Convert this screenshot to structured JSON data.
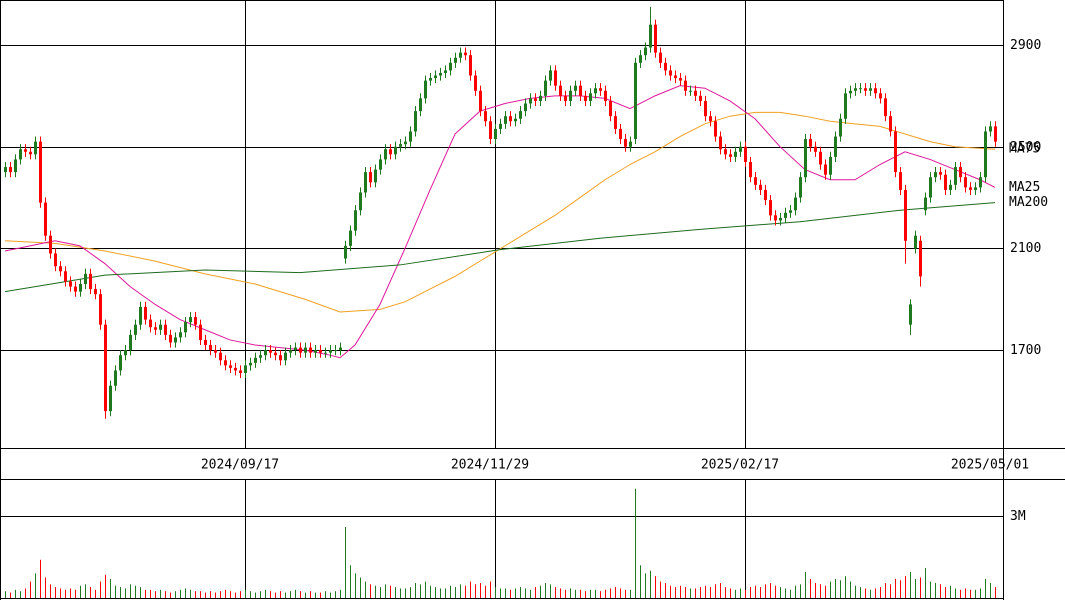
{
  "chart_data": {
    "type": "candlestick",
    "categories": [
      null,
      null,
      null,
      null,
      null,
      null,
      null,
      null,
      null,
      null,
      null,
      null,
      null,
      null,
      null,
      null,
      null,
      null,
      null,
      null,
      null,
      null,
      null,
      null,
      null,
      null,
      null,
      null,
      null,
      null,
      null,
      null,
      null,
      null,
      null,
      null,
      null,
      null,
      null,
      null,
      null,
      null,
      null,
      null,
      null,
      null,
      null,
      null,
      "2024/09/17",
      null,
      null,
      null,
      null,
      null,
      null,
      null,
      null,
      null,
      null,
      null,
      null,
      null,
      null,
      null,
      null,
      null,
      null,
      null,
      null,
      null,
      null,
      null,
      null,
      null,
      null,
      null,
      null,
      null,
      null,
      null,
      null,
      null,
      null,
      null,
      null,
      null,
      null,
      null,
      null,
      null,
      null,
      null,
      null,
      null,
      null,
      null,
      null,
      null,
      "2024/11/29",
      null,
      null,
      null,
      null,
      null,
      null,
      null,
      null,
      null,
      null,
      null,
      null,
      null,
      null,
      null,
      null,
      null,
      null,
      null,
      null,
      null,
      null,
      null,
      null,
      null,
      null,
      null,
      null,
      null,
      null,
      null,
      null,
      null,
      null,
      null,
      null,
      null,
      null,
      null,
      null,
      null,
      null,
      null,
      null,
      null,
      null,
      null,
      null,
      null,
      "2025/02/17",
      null,
      null,
      null,
      null,
      null,
      null,
      null,
      null,
      null,
      null,
      null,
      null,
      null,
      null,
      null,
      null,
      null,
      null,
      null,
      null,
      null,
      null,
      null,
      null,
      null,
      null,
      null,
      null,
      null,
      null,
      null,
      null,
      null,
      null,
      null,
      null,
      null,
      null,
      null,
      null,
      null,
      null,
      null,
      null,
      null,
      null,
      null,
      null,
      null,
      "2025/05/01"
    ],
    "open": [
      2400,
      2420,
      2400,
      2450,
      2490,
      2480,
      2470,
      2520,
      2280,
      2150,
      2080,
      2030,
      2010,
      1970,
      1950,
      1930,
      1960,
      2000,
      1940,
      1920,
      1800,
      1460,
      1560,
      1620,
      1680,
      1700,
      1760,
      1800,
      1870,
      1820,
      1790,
      1780,
      1800,
      1760,
      1730,
      1750,
      1770,
      1810,
      1830,
      1800,
      1740,
      1720,
      1700,
      1690,
      1660,
      1640,
      1630,
      1620,
      1610,
      1640,
      1650,
      1670,
      1680,
      1700,
      1690,
      1680,
      1660,
      1690,
      1700,
      1710,
      1690,
      1710,
      1690,
      1700,
      1690,
      1690,
      1700,
      1700,
      2060,
      2110,
      2170,
      2250,
      2320,
      2400,
      2360,
      2410,
      2450,
      2490,
      2470,
      2500,
      2510,
      2520,
      2560,
      2640,
      2690,
      2760,
      2770,
      2780,
      2790,
      2800,
      2830,
      2850,
      2870,
      2860,
      2780,
      2720,
      2640,
      2600,
      2530,
      2570,
      2590,
      2620,
      2600,
      2610,
      2640,
      2670,
      2690,
      2680,
      2700,
      2760,
      2800,
      2740,
      2700,
      2680,
      2720,
      2740,
      2700,
      2680,
      2710,
      2730,
      2720,
      2680,
      2620,
      2570,
      2530,
      2500,
      2530,
      2830,
      2860,
      2890,
      2980,
      2870,
      2830,
      2800,
      2780,
      2770,
      2760,
      2720,
      2720,
      2700,
      2680,
      2620,
      2600,
      2540,
      2490,
      2470,
      2460,
      2480,
      2500,
      2440,
      2380,
      2350,
      2330,
      2290,
      2230,
      2210,
      2220,
      2240,
      2250,
      2300,
      2380,
      2530,
      2500,
      2480,
      2430,
      2390,
      2460,
      2540,
      2610,
      2710,
      2720,
      2730,
      2730,
      2720,
      2730,
      2710,
      2690,
      2620,
      2560,
      2400,
      2330,
      1800,
      2100,
      2130,
      2250,
      2300,
      2380,
      2400,
      2390,
      2330,
      2350,
      2420,
      2380,
      2340,
      2330,
      2340,
      2380,
      2560,
      2580
    ],
    "high": [
      2440,
      2440,
      2470,
      2510,
      2510,
      2500,
      2540,
      2540,
      2300,
      2170,
      2100,
      2050,
      2030,
      1990,
      1970,
      1980,
      2020,
      2020,
      1960,
      1940,
      1820,
      1580,
      1640,
      1700,
      1720,
      1780,
      1820,
      1890,
      1890,
      1840,
      1810,
      1820,
      1820,
      1780,
      1770,
      1790,
      1830,
      1850,
      1850,
      1820,
      1760,
      1740,
      1720,
      1710,
      1680,
      1660,
      1650,
      1640,
      1660,
      1670,
      1690,
      1700,
      1720,
      1720,
      1710,
      1700,
      1710,
      1720,
      1730,
      1730,
      1730,
      1730,
      1720,
      1720,
      1710,
      1720,
      1720,
      1730,
      2130,
      2190,
      2270,
      2340,
      2420,
      2420,
      2430,
      2470,
      2510,
      2510,
      2520,
      2530,
      2540,
      2580,
      2660,
      2710,
      2780,
      2790,
      2800,
      2810,
      2820,
      2850,
      2870,
      2890,
      2890,
      2880,
      2800,
      2740,
      2660,
      2620,
      2590,
      2610,
      2640,
      2640,
      2630,
      2660,
      2690,
      2710,
      2710,
      2720,
      2780,
      2820,
      2820,
      2760,
      2720,
      2740,
      2760,
      2760,
      2720,
      2730,
      2750,
      2750,
      2740,
      2700,
      2640,
      2590,
      2550,
      2540,
      2850,
      2880,
      2910,
      3050,
      3000,
      2890,
      2850,
      2820,
      2800,
      2790,
      2780,
      2740,
      2740,
      2720,
      2700,
      2640,
      2620,
      2560,
      2510,
      2490,
      2500,
      2520,
      2520,
      2460,
      2400,
      2370,
      2350,
      2310,
      2250,
      2240,
      2260,
      2270,
      2320,
      2400,
      2550,
      2550,
      2520,
      2500,
      2450,
      2480,
      2560,
      2630,
      2730,
      2740,
      2750,
      2750,
      2750,
      2750,
      2750,
      2730,
      2710,
      2640,
      2580,
      2420,
      2350,
      1900,
      2170,
      2150,
      2320,
      2400,
      2420,
      2420,
      2410,
      2370,
      2440,
      2440,
      2400,
      2360,
      2360,
      2400,
      2580,
      2600,
      2600
    ],
    "low": [
      2380,
      2380,
      2380,
      2430,
      2460,
      2450,
      2450,
      2260,
      2130,
      2060,
      2010,
      1990,
      1950,
      1930,
      1910,
      1910,
      1940,
      1920,
      1900,
      1780,
      1430,
      1440,
      1540,
      1600,
      1660,
      1680,
      1740,
      1780,
      1800,
      1770,
      1760,
      1760,
      1740,
      1710,
      1710,
      1730,
      1750,
      1790,
      1780,
      1720,
      1700,
      1680,
      1670,
      1640,
      1620,
      1610,
      1600,
      1590,
      1590,
      1620,
      1630,
      1650,
      1660,
      1670,
      1660,
      1640,
      1640,
      1670,
      1680,
      1670,
      1670,
      1670,
      1670,
      1670,
      1670,
      1670,
      1680,
      1680,
      2040,
      2090,
      2150,
      2230,
      2300,
      2340,
      2340,
      2390,
      2430,
      2450,
      2450,
      2480,
      2490,
      2500,
      2540,
      2620,
      2670,
      2740,
      2750,
      2760,
      2770,
      2780,
      2810,
      2830,
      2840,
      2760,
      2700,
      2620,
      2580,
      2510,
      2510,
      2550,
      2570,
      2580,
      2580,
      2590,
      2620,
      2650,
      2660,
      2660,
      2680,
      2740,
      2720,
      2680,
      2660,
      2660,
      2700,
      2680,
      2660,
      2660,
      2690,
      2700,
      2660,
      2600,
      2550,
      2510,
      2480,
      2480,
      2510,
      2810,
      2840,
      2870,
      2850,
      2810,
      2780,
      2760,
      2750,
      2740,
      2700,
      2700,
      2680,
      2660,
      2600,
      2580,
      2520,
      2470,
      2450,
      2440,
      2440,
      2460,
      2420,
      2360,
      2330,
      2310,
      2270,
      2210,
      2190,
      2190,
      2200,
      2220,
      2230,
      2280,
      2360,
      2480,
      2460,
      2410,
      2370,
      2370,
      2440,
      2520,
      2590,
      2690,
      2700,
      2710,
      2700,
      2700,
      2690,
      2670,
      2600,
      2540,
      2380,
      2310,
      2040,
      1760,
      2080,
      1950,
      2230,
      2280,
      2360,
      2370,
      2310,
      2310,
      2330,
      2360,
      2320,
      2310,
      2310,
      2320,
      2360,
      2540,
      2500
    ],
    "close": [
      2420,
      2400,
      2450,
      2490,
      2480,
      2470,
      2520,
      2280,
      2150,
      2080,
      2030,
      2010,
      1970,
      1950,
      1930,
      1960,
      2000,
      1940,
      1920,
      1800,
      1460,
      1560,
      1620,
      1680,
      1700,
      1760,
      1800,
      1870,
      1820,
      1790,
      1780,
      1800,
      1760,
      1730,
      1750,
      1770,
      1810,
      1830,
      1800,
      1740,
      1720,
      1700,
      1690,
      1660,
      1640,
      1630,
      1620,
      1610,
      1640,
      1650,
      1670,
      1680,
      1700,
      1690,
      1680,
      1660,
      1690,
      1700,
      1710,
      1690,
      1710,
      1690,
      1700,
      1690,
      1690,
      1700,
      1700,
      1710,
      2110,
      2170,
      2250,
      2320,
      2400,
      2360,
      2410,
      2450,
      2490,
      2470,
      2500,
      2510,
      2520,
      2560,
      2640,
      2690,
      2760,
      2770,
      2780,
      2790,
      2800,
      2830,
      2850,
      2870,
      2860,
      2780,
      2720,
      2640,
      2600,
      2530,
      2570,
      2590,
      2620,
      2600,
      2610,
      2640,
      2670,
      2690,
      2680,
      2700,
      2760,
      2800,
      2740,
      2700,
      2680,
      2720,
      2740,
      2700,
      2680,
      2710,
      2730,
      2720,
      2680,
      2620,
      2570,
      2530,
      2500,
      2520,
      2830,
      2860,
      2890,
      2980,
      2870,
      2830,
      2800,
      2780,
      2770,
      2760,
      2720,
      2720,
      2700,
      2680,
      2620,
      2600,
      2540,
      2490,
      2470,
      2460,
      2480,
      2500,
      2440,
      2380,
      2350,
      2330,
      2290,
      2230,
      2210,
      2220,
      2240,
      2250,
      2300,
      2380,
      2530,
      2500,
      2480,
      2430,
      2390,
      2460,
      2540,
      2610,
      2710,
      2720,
      2730,
      2730,
      2720,
      2730,
      2710,
      2690,
      2620,
      2560,
      2400,
      2330,
      2130,
      1880,
      2150,
      1990,
      2300,
      2380,
      2400,
      2390,
      2330,
      2350,
      2420,
      2380,
      2340,
      2330,
      2340,
      2380,
      2560,
      2580,
      2520
    ],
    "up_color": "#1f7a1f",
    "down_color": "#ff0000",
    "ylim": [
      1315,
      3077
    ],
    "yticks": [
      1700,
      2100,
      2500,
      2900
    ],
    "grid": true,
    "series": [
      {
        "name": "MA75",
        "color": "#f0a020",
        "x": [
          0,
          10,
          20,
          30,
          40,
          50,
          60,
          67,
          75,
          80,
          85,
          90,
          95,
          100,
          105,
          110,
          115,
          120,
          125,
          130,
          135,
          140,
          145,
          150,
          155,
          160,
          165,
          170,
          175,
          180,
          185,
          190,
          198
        ],
        "values": [
          2130,
          2120,
          2090,
          2050,
          2000,
          1960,
          1900,
          1850,
          1860,
          1890,
          1940,
          1990,
          2050,
          2110,
          2170,
          2230,
          2300,
          2370,
          2430,
          2480,
          2540,
          2590,
          2620,
          2635,
          2635,
          2620,
          2600,
          2590,
          2580,
          2550,
          2520,
          2500,
          2490
        ]
      },
      {
        "name": "MA25",
        "color": "#e0169a",
        "x": [
          0,
          5,
          10,
          15,
          20,
          25,
          30,
          35,
          40,
          45,
          50,
          55,
          60,
          65,
          67,
          70,
          75,
          80,
          85,
          90,
          95,
          100,
          105,
          110,
          115,
          120,
          125,
          130,
          135,
          140,
          145,
          150,
          155,
          160,
          165,
          170,
          175,
          180,
          185,
          190,
          195,
          198
        ],
        "values": [
          2090,
          2110,
          2130,
          2110,
          2040,
          1950,
          1880,
          1820,
          1780,
          1740,
          1720,
          1710,
          1700,
          1680,
          1670,
          1720,
          1880,
          2100,
          2330,
          2550,
          2640,
          2670,
          2690,
          2700,
          2700,
          2690,
          2650,
          2700,
          2740,
          2730,
          2680,
          2610,
          2500,
          2410,
          2370,
          2370,
          2430,
          2480,
          2450,
          2410,
          2370,
          2340
        ]
      },
      {
        "name": "MA200",
        "color": "#1e6b1e",
        "x": [
          0,
          20,
          40,
          59,
          79,
          99,
          119,
          139,
          159,
          179,
          198
        ],
        "values": [
          1930,
          1995,
          2015,
          2005,
          2035,
          2095,
          2140,
          2175,
          2205,
          2250,
          2280
        ]
      }
    ],
    "volume": {
      "values": [
        250000,
        200000,
        300000,
        250000,
        350000,
        600000,
        900000,
        1400000,
        750000,
        500000,
        400000,
        350000,
        300000,
        350000,
        300000,
        450000,
        500000,
        400000,
        300000,
        600000,
        850000,
        700000,
        450000,
        400000,
        350000,
        500000,
        450000,
        400000,
        300000,
        300000,
        250000,
        300000,
        250000,
        200000,
        250000,
        300000,
        350000,
        300000,
        250000,
        250000,
        200000,
        250000,
        200000,
        250000,
        300000,
        250000,
        200000,
        250000,
        300000,
        250000,
        200000,
        250000,
        300000,
        250000,
        200000,
        250000,
        200000,
        250000,
        300000,
        250000,
        200000,
        250000,
        200000,
        200000,
        250000,
        200000,
        250000,
        300000,
        2600000,
        1200000,
        900000,
        750000,
        600000,
        500000,
        450000,
        400000,
        500000,
        450000,
        400000,
        350000,
        350000,
        400000,
        550000,
        500000,
        600000,
        450000,
        400000,
        350000,
        350000,
        450000,
        400000,
        500000,
        450000,
        600000,
        500000,
        550000,
        450000,
        600000,
        400000,
        350000,
        350000,
        300000,
        350000,
        400000,
        350000,
        300000,
        400000,
        450000,
        550000,
        500000,
        400000,
        350000,
        300000,
        350000,
        300000,
        300000,
        250000,
        300000,
        300000,
        250000,
        300000,
        350000,
        400000,
        350000,
        300000,
        300000,
        4000000,
        1200000,
        900000,
        1000000,
        800000,
        600000,
        550000,
        450000,
        400000,
        450000,
        400000,
        350000,
        350000,
        400000,
        450000,
        400000,
        500000,
        550000,
        400000,
        350000,
        300000,
        350000,
        300000,
        400000,
        450000,
        400000,
        500000,
        550000,
        450000,
        400000,
        350000,
        300000,
        450000,
        500000,
        950000,
        700000,
        550000,
        500000,
        450000,
        600000,
        700000,
        650000,
        800000,
        600000,
        450000,
        400000,
        350000,
        300000,
        350000,
        400000,
        550000,
        500000,
        700000,
        650000,
        800000,
        950000,
        700000,
        750000,
        1100000,
        600000,
        550000,
        500000,
        400000,
        450000,
        350000,
        300000,
        350000,
        300000,
        300000,
        350000,
        700000,
        550000,
        400000
      ],
      "ylim": [
        0,
        4320000
      ],
      "yticks": [
        {
          "value": 3000000,
          "label": "3M"
        }
      ]
    }
  }
}
